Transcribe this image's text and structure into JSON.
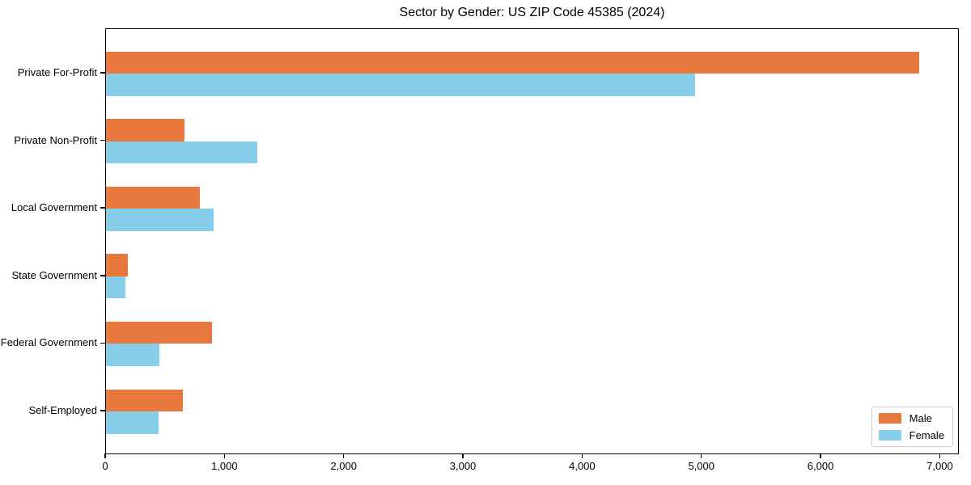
{
  "chart_data": {
    "type": "bar",
    "orientation": "horizontal",
    "title": "Sector by Gender: US ZIP Code 45385 (2024)",
    "categories": [
      "Private For-Profit",
      "Private Non-Profit",
      "Local Government",
      "State Government",
      "Federal Government",
      "Self-Employed"
    ],
    "series": [
      {
        "name": "Male",
        "color": "#e8793e",
        "values": [
          6820,
          660,
          790,
          185,
          890,
          645
        ]
      },
      {
        "name": "Female",
        "color": "#87ceeb",
        "values": [
          4940,
          1270,
          900,
          160,
          450,
          440
        ]
      }
    ],
    "xlabel": "",
    "ylabel": "",
    "xlim": [
      0,
      7160
    ],
    "x_tick_values": [
      0,
      1000,
      2000,
      3000,
      4000,
      5000,
      6000,
      7000
    ],
    "x_tick_labels": [
      "0",
      "1,000",
      "2,000",
      "3,000",
      "4,000",
      "5,000",
      "6,000",
      "7,000"
    ],
    "grid": false,
    "legend_position": "lower right",
    "plot_background": "#ffffff",
    "spine_color": "#000000"
  }
}
